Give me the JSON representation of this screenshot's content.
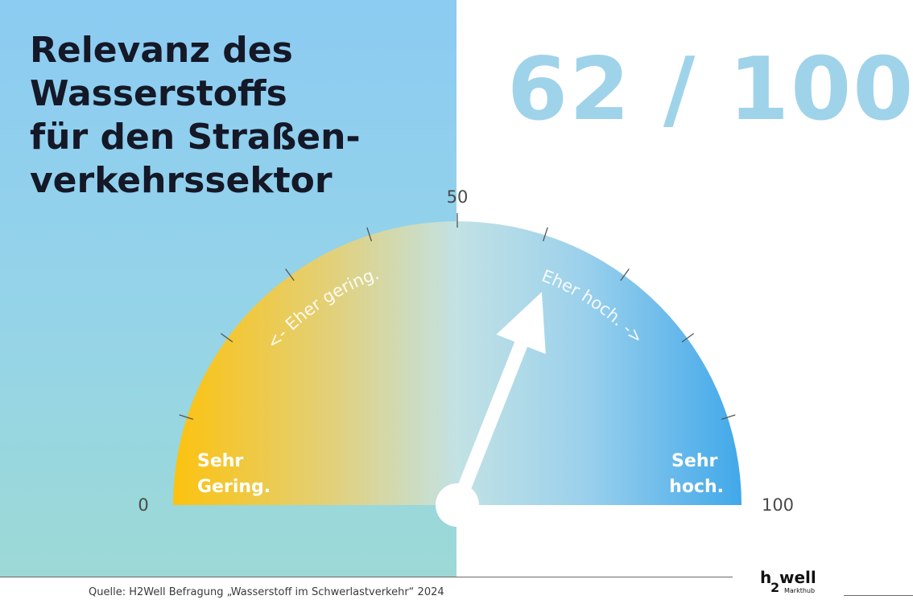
{
  "title_lines": [
    "Relevanz des",
    "Wasserstoffs",
    "für den Straßen-",
    "verkehrssektor"
  ],
  "score_text": "62 / 100",
  "source": "Quelle: H2Well Befragung „Wasserstoff im Schwerlastverkehr“ 2024",
  "logo": {
    "h": "h",
    "two": "2",
    "well": "well",
    "sub": "Markthub"
  },
  "chart_data": {
    "type": "gauge",
    "value": 62,
    "min": 0,
    "max": 100,
    "tick_labels": [
      "0",
      "50",
      "100"
    ],
    "zone_labels": {
      "low": [
        "Sehr",
        "Gering."
      ],
      "mid_low": "<- Eher gering.",
      "mid_high": "Eher hoch. ->",
      "high": [
        "Sehr",
        "hoch."
      ]
    },
    "colors": {
      "low": "#fcc20f",
      "mid": "#c2e2e4",
      "high": "#41a8ea",
      "needle": "#ffffff",
      "panel": "#8ccbf2",
      "score": "#9fd3ea",
      "title": "#141827"
    }
  }
}
